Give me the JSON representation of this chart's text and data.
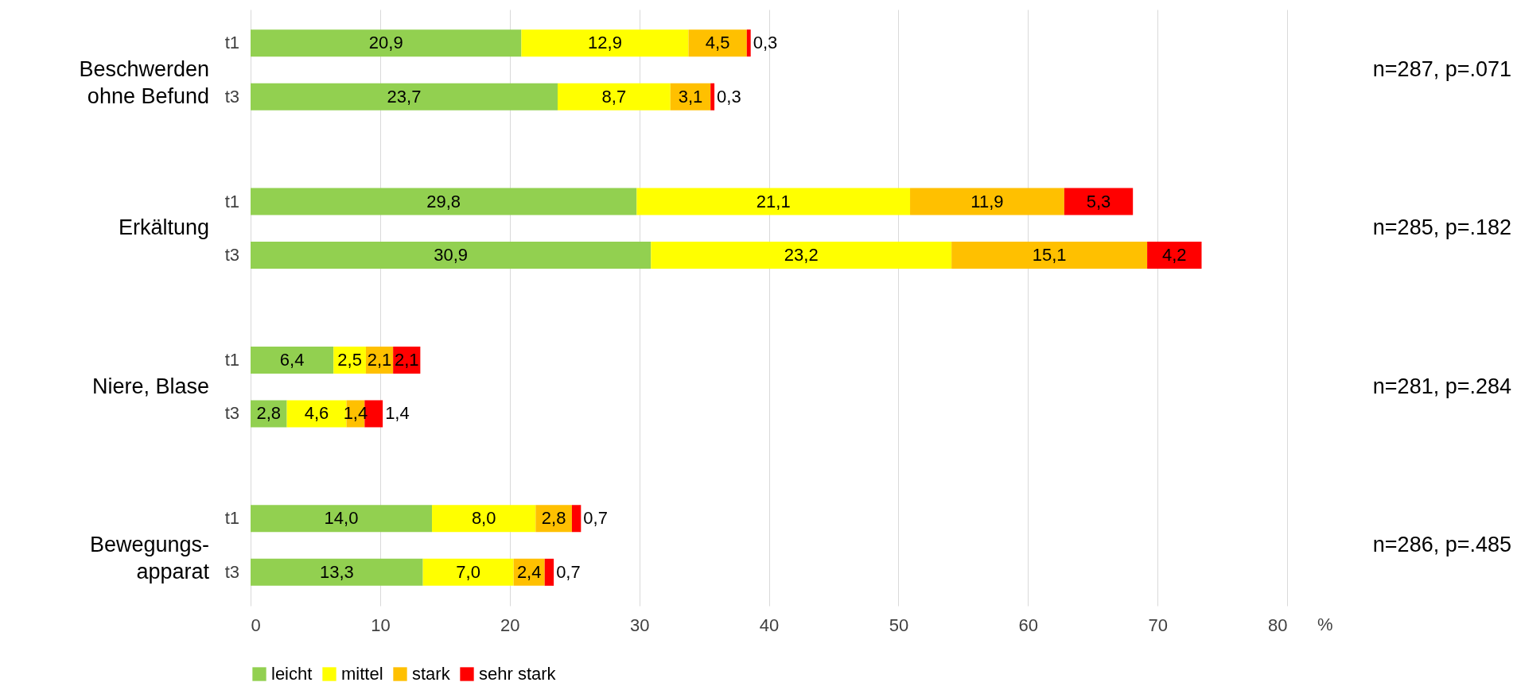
{
  "chart_data": {
    "type": "bar",
    "orientation": "horizontal",
    "stacked": true,
    "xlabel": "%",
    "categories": [
      "t1",
      "t3",
      "t1",
      "t3",
      "t1",
      "t3",
      "t1",
      "t3"
    ],
    "series": [
      {
        "name": "leicht",
        "color": "#92d050",
        "values": [
          20.9,
          23.7,
          29.8,
          30.9,
          6.4,
          2.8,
          14.0,
          13.3
        ],
        "value_labels": [
          "20,9",
          "23,7",
          "29,8",
          "30,9",
          "6,4",
          "2,8",
          "14,0",
          "13,3"
        ]
      },
      {
        "name": "mittel",
        "color": "#ffff00",
        "values": [
          12.9,
          8.7,
          21.1,
          23.2,
          2.5,
          4.6,
          8.0,
          7.0
        ],
        "value_labels": [
          "12,9",
          "8,7",
          "21,1",
          "23,2",
          "2,5",
          "4,6",
          "8,0",
          "7,0"
        ]
      },
      {
        "name": "stark",
        "color": "#ffc000",
        "values": [
          4.5,
          3.1,
          11.9,
          15.1,
          2.1,
          1.4,
          2.8,
          2.4
        ],
        "value_labels": [
          "4,5",
          "3,1",
          "11,9",
          "15,1",
          "2,1",
          "1,4",
          "2,8",
          "2,4"
        ]
      },
      {
        "name": "sehr stark",
        "color": "#ff0000",
        "values": [
          0.3,
          0.3,
          5.3,
          4.2,
          2.1,
          1.4,
          0.7,
          0.7
        ],
        "value_labels": [
          "0,3",
          "0,3",
          "5,3",
          "4,2",
          "2,1",
          "1,4",
          "0,7",
          "0,7"
        ]
      }
    ],
    "xlim": [
      0,
      80
    ],
    "xticks": [
      0,
      10,
      20,
      30,
      40,
      50,
      60,
      70,
      80
    ],
    "grid": "x",
    "legend": "bottom",
    "annotations": [
      "Beschwerden\nohne Befund",
      "Erkältung",
      "Niere, Blase",
      "Bewegungs-\napparat",
      "n=287, p=.071",
      "n=285, p=.182",
      "n=281, p=.284",
      "n=286, p=.485"
    ]
  }
}
